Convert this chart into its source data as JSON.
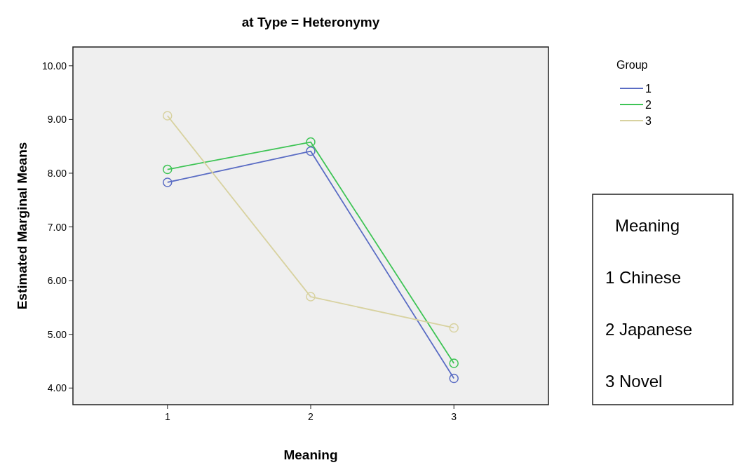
{
  "chart_data": {
    "type": "line",
    "title": "at Type = Heteronymy",
    "xlabel": "Meaning",
    "ylabel": "Estimated Marginal Means",
    "legend_title": "Group",
    "categories": [
      "1",
      "2",
      "3"
    ],
    "series": [
      {
        "name": "1",
        "color": "#5a6cc4",
        "values": [
          7.83,
          8.41,
          4.18
        ]
      },
      {
        "name": "2",
        "color": "#3ec455",
        "values": [
          8.07,
          8.58,
          4.46
        ]
      },
      {
        "name": "3",
        "color": "#d8d2a0",
        "values": [
          9.07,
          5.7,
          5.12
        ]
      }
    ],
    "ylim": [
      3.69,
      10.35
    ],
    "yticks": [
      {
        "value": 4,
        "label": "4.00"
      },
      {
        "value": 5,
        "label": "5.00"
      },
      {
        "value": 6,
        "label": "6.00"
      },
      {
        "value": 7,
        "label": "7.00"
      },
      {
        "value": 8,
        "label": "8.00"
      },
      {
        "value": 9,
        "label": "9.00"
      },
      {
        "value": 10,
        "label": "10.00"
      }
    ],
    "grid": false,
    "legend": "top right",
    "marker": "circle",
    "line_style": "solid",
    "annotations": [
      "Meaning",
      "1 Chinese",
      "2 Japanese",
      "3 Novel"
    ]
  }
}
